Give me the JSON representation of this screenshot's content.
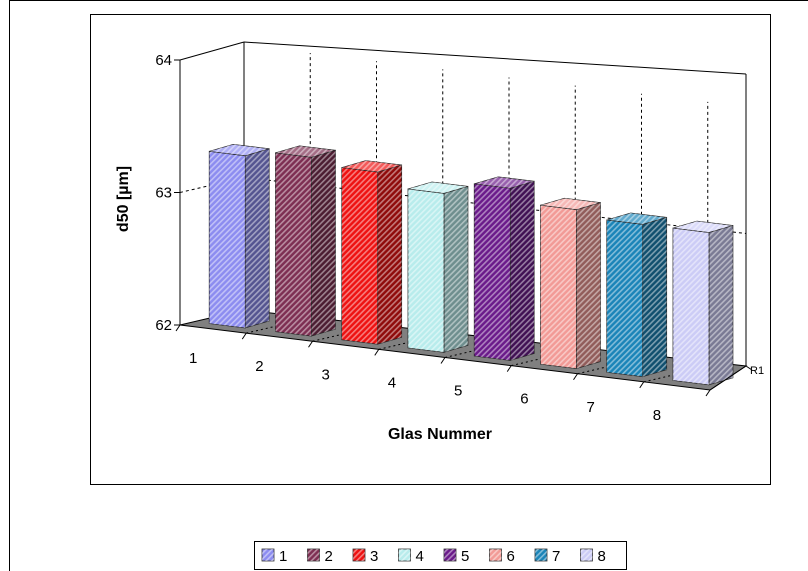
{
  "chart_data": {
    "type": "bar",
    "style": "3d-column",
    "xlabel": "Glas Nummer",
    "ylabel": "d50 [µm]",
    "series_axis_label": "R1",
    "ylim": [
      62,
      64
    ],
    "yticks": [
      "62",
      "63",
      "64"
    ],
    "categories": [
      "1",
      "2",
      "3",
      "4",
      "5",
      "6",
      "7",
      "8"
    ],
    "values": [
      63.3,
      63.35,
      63.3,
      63.2,
      63.3,
      63.2,
      63.15,
      63.15
    ],
    "colors": [
      "#8c8cf0",
      "#7d2e52",
      "#ee1111",
      "#b8ecec",
      "#6a1a8a",
      "#f29a96",
      "#1a84b8",
      "#ccccf6"
    ],
    "grid": true,
    "legend_position": "bottom",
    "legend": [
      "1",
      "2",
      "3",
      "4",
      "5",
      "6",
      "7",
      "8"
    ]
  }
}
